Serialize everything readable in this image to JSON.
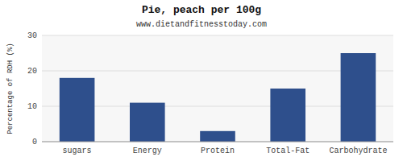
{
  "chart_data": {
    "type": "bar",
    "title": "Pie, peach per 100g",
    "subtitle": "www.dietandfitnesstoday.com",
    "ylabel": "Percentage of RDH (%)",
    "categories": [
      "sugars",
      "Energy",
      "Protein",
      "Total-Fat",
      "Carbohydrate"
    ],
    "values": [
      18,
      11,
      3,
      15,
      25
    ],
    "color": "#2e4f8c",
    "ylim": [
      0,
      30
    ],
    "yticks": [
      0,
      10,
      20,
      30
    ],
    "grid": true
  }
}
